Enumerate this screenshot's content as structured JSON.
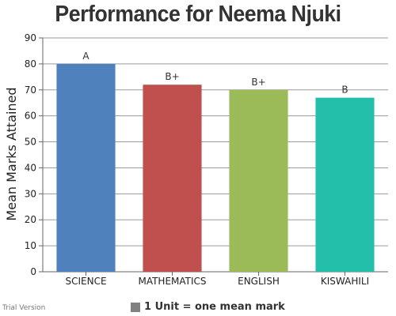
{
  "chart_data": {
    "type": "bar",
    "title": "Performance for Neema Njuki",
    "ylabel": "Mean Marks Attained",
    "xlabel": "",
    "categories": [
      "SCIENCE",
      "MATHEMATICS",
      "ENGLISH",
      "KISWAHILI"
    ],
    "values": [
      80,
      72,
      70,
      67
    ],
    "data_labels": [
      "A",
      "B+",
      "B+",
      "B"
    ],
    "colors": [
      "#4f81bd",
      "#c0504d",
      "#9bbb59",
      "#23bfaa"
    ],
    "ylim": [
      0,
      90
    ],
    "yticks": [
      0,
      10,
      20,
      30,
      40,
      50,
      60,
      70,
      80,
      90
    ],
    "grid": true,
    "legend_position": "bottom",
    "legend": [
      {
        "label": "1 Unit = one mean mark",
        "color": "#808080"
      }
    ]
  },
  "watermark": "Trial Version"
}
